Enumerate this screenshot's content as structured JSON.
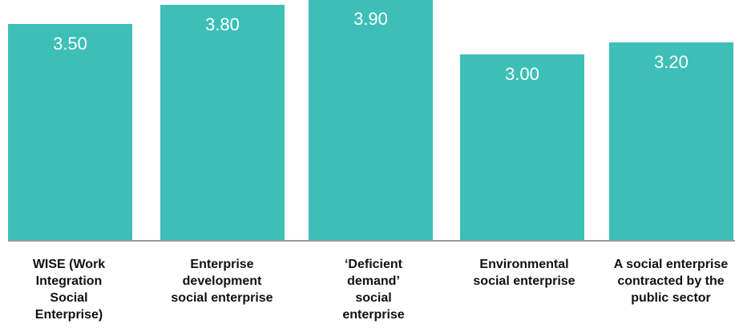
{
  "chart_data": {
    "type": "bar",
    "categories": [
      "WISE (Work Integration Social Enterprise)",
      "Enterprise development social enterprise",
      "‘Deficient demand’ social enterprise",
      "Environmental social enterprise",
      "A social enterprise contracted by the public sector"
    ],
    "category_lines": [
      [
        "WISE (Work",
        "Integration",
        "Social",
        "Enterprise)"
      ],
      [
        "Enterprise",
        "development",
        "social enterprise"
      ],
      [
        "‘Deficient",
        "demand’",
        "social",
        "enterprise"
      ],
      [
        "Environmental",
        "social enterprise"
      ],
      [
        "A social enterprise",
        "contracted by the",
        "public sector"
      ]
    ],
    "values": [
      3.5,
      3.8,
      3.9,
      3.0,
      3.2
    ],
    "value_labels": [
      "3.50",
      "3.80",
      "3.90",
      "3.00",
      "3.20"
    ],
    "title": "",
    "xlabel": "",
    "ylabel": "",
    "ylim": [
      0,
      4.0
    ],
    "grid": false,
    "legend": "none",
    "colors": {
      "bar": "#3dbfb7",
      "axis": "#9a9a9a",
      "label_text": "#ffffff",
      "category_text": "#111111"
    }
  }
}
